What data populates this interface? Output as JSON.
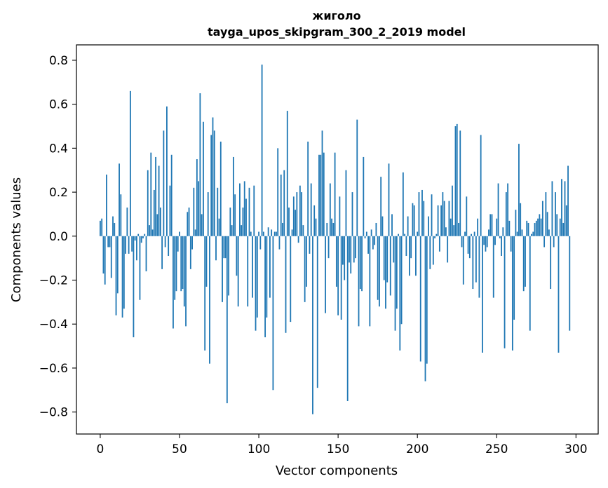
{
  "chart_data": {
    "type": "bar",
    "title": "жиголо",
    "subtitle": "tayga_upos_skipgram_300_2_2019 model",
    "xlabel": "Vector components",
    "ylabel": "Components values",
    "xlim": [
      -15,
      314
    ],
    "ylim": [
      -0.9,
      0.87
    ],
    "xticks": [
      0,
      50,
      100,
      150,
      200,
      250,
      300
    ],
    "xtick_labels": [
      "0",
      "50",
      "100",
      "150",
      "200",
      "250",
      "300"
    ],
    "yticks": [
      0.8,
      0.6,
      0.4,
      0.2,
      0.0,
      -0.2,
      -0.4,
      -0.6,
      -0.8
    ],
    "ytick_labels": [
      "0.8",
      "0.6",
      "0.4",
      "0.2",
      "0.0",
      "−0.2",
      "−0.4",
      "−0.6",
      "−0.8"
    ],
    "bar_color": "#1f77b4",
    "values": [
      0.07,
      0.08,
      -0.17,
      -0.22,
      0.28,
      -0.05,
      -0.05,
      -0.19,
      0.09,
      0.06,
      -0.36,
      -0.26,
      0.33,
      0.19,
      -0.37,
      -0.33,
      -0.08,
      0.13,
      -0.08,
      0.66,
      -0.07,
      -0.46,
      -0.02,
      -0.11,
      0.01,
      -0.29,
      -0.03,
      -0.01,
      0.01,
      -0.16,
      0.3,
      0.05,
      0.38,
      0.03,
      0.21,
      0.36,
      0.1,
      0.32,
      0.13,
      -0.15,
      0.48,
      -0.05,
      0.59,
      -0.09,
      0.23,
      0.37,
      -0.42,
      -0.29,
      -0.25,
      -0.07,
      0.02,
      -0.25,
      -0.24,
      -0.32,
      -0.41,
      0.11,
      0.13,
      -0.15,
      -0.06,
      0.22,
      0.03,
      0.35,
      0.25,
      0.65,
      0.1,
      0.52,
      -0.52,
      -0.23,
      0.2,
      -0.58,
      0.46,
      0.54,
      0.48,
      -0.11,
      0.22,
      0.08,
      0.43,
      -0.3,
      -0.1,
      -0.1,
      -0.76,
      -0.27,
      0.13,
      0.05,
      0.36,
      0.19,
      -0.18,
      -0.32,
      0.24,
      0.05,
      0.13,
      0.25,
      0.17,
      -0.32,
      0.22,
      0.02,
      -0.28,
      0.23,
      -0.43,
      -0.37,
      0.02,
      -0.06,
      0.78,
      0.02,
      -0.46,
      -0.37,
      0.04,
      -0.28,
      0.03,
      -0.7,
      0.02,
      0.02,
      0.4,
      -0.06,
      0.28,
      0.06,
      0.3,
      -0.44,
      0.57,
      0.13,
      -0.39,
      0.03,
      0.18,
      0.12,
      0.2,
      -0.03,
      0.23,
      0.2,
      0.05,
      -0.3,
      -0.23,
      0.43,
      -0.08,
      0.24,
      -0.81,
      0.14,
      0.08,
      -0.69,
      0.37,
      0.37,
      0.48,
      0.38,
      -0.35,
      0.06,
      -0.1,
      0.24,
      0.08,
      0.06,
      0.38,
      -0.23,
      -0.36,
      0.18,
      -0.38,
      -0.13,
      -0.2,
      0.3,
      -0.75,
      -0.12,
      -0.17,
      0.2,
      -0.12,
      -0.1,
      0.53,
      -0.41,
      -0.24,
      -0.25,
      0.36,
      -0.01,
      0.02,
      -0.08,
      -0.41,
      0.03,
      -0.06,
      -0.04,
      0.06,
      -0.29,
      -0.32,
      0.27,
      0.09,
      -0.2,
      -0.33,
      -0.21,
      0.33,
      -0.27,
      0.1,
      -0.12,
      -0.43,
      -0.33,
      0.01,
      -0.52,
      -0.4,
      0.29,
      0.01,
      -0.09,
      0.09,
      -0.18,
      -0.1,
      0.15,
      0.14,
      -0.18,
      0.02,
      0.2,
      -0.57,
      0.21,
      0.16,
      -0.66,
      -0.58,
      0.09,
      -0.15,
      0.19,
      -0.13,
      -0.01,
      0.01,
      0.14,
      -0.07,
      0.14,
      0.2,
      0.16,
      0.04,
      -0.12,
      0.16,
      0.08,
      0.23,
      0.05,
      0.5,
      0.51,
      0.06,
      0.48,
      -0.05,
      -0.22,
      0.02,
      0.18,
      -0.08,
      -0.1,
      0.01,
      -0.24,
      0.02,
      -0.21,
      0.08,
      -0.28,
      0.46,
      -0.53,
      -0.04,
      -0.07,
      -0.05,
      0.03,
      0.1,
      0.1,
      -0.28,
      -0.04,
      0.08,
      0.24,
      -0.01,
      -0.09,
      0.04,
      -0.51,
      0.2,
      0.24,
      0.07,
      -0.07,
      -0.52,
      -0.38,
      0.12,
      0.02,
      0.42,
      0.15,
      0.03,
      -0.25,
      -0.23,
      0.07,
      0.06,
      -0.43,
      0.01,
      0.02,
      0.06,
      0.07,
      0.08,
      0.1,
      0.08,
      0.16,
      -0.05,
      0.2,
      0.11,
      0.03,
      -0.24,
      0.25,
      -0.05,
      0.2,
      0.1,
      -0.53,
      0.08,
      0.26,
      0.06,
      0.25,
      0.14,
      0.32,
      -0.43
    ]
  }
}
